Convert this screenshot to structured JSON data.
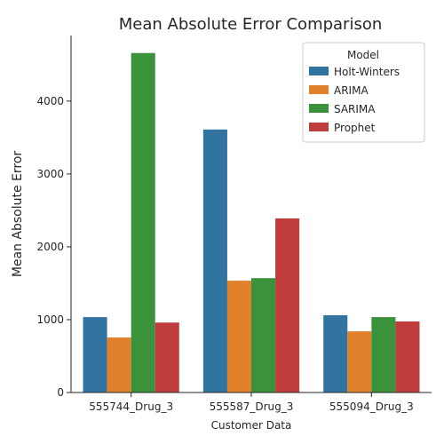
{
  "chart_data": {
    "type": "bar",
    "title": "Mean Absolute Error Comparison",
    "xlabel": "Customer Data",
    "ylabel": "Mean Absolute Error",
    "categories": [
      "555744_Drug_3",
      "555587_Drug_3",
      "555094_Drug_3"
    ],
    "series": [
      {
        "name": "Holt-Winters",
        "color": "#3274a1",
        "values": [
          1035,
          3610,
          1060
        ]
      },
      {
        "name": "ARIMA",
        "color": "#e1812c",
        "values": [
          755,
          1535,
          840
        ]
      },
      {
        "name": "SARIMA",
        "color": "#3a923a",
        "values": [
          4660,
          1570,
          1035
        ]
      },
      {
        "name": "Prophet",
        "color": "#c03d3e",
        "values": [
          960,
          2390,
          975
        ]
      }
    ],
    "ylim": [
      0,
      4900
    ],
    "yticks": [
      0,
      1000,
      2000,
      3000,
      4000
    ],
    "grid": false,
    "legend": {
      "title": "Model",
      "position": "top-right"
    }
  }
}
